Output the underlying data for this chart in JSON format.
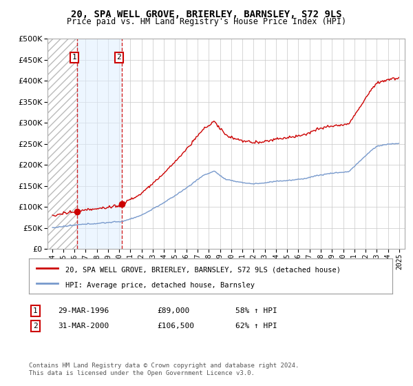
{
  "title": "20, SPA WELL GROVE, BRIERLEY, BARNSLEY, S72 9LS",
  "subtitle": "Price paid vs. HM Land Registry's House Price Index (HPI)",
  "legend_line1": "20, SPA WELL GROVE, BRIERLEY, BARNSLEY, S72 9LS (detached house)",
  "legend_line2": "HPI: Average price, detached house, Barnsley",
  "transaction1_label": "1",
  "transaction1_date": "29-MAR-1996",
  "transaction1_price": "£89,000",
  "transaction1_hpi": "58% ↑ HPI",
  "transaction1_x": 1996.24,
  "transaction1_y": 89000,
  "transaction2_label": "2",
  "transaction2_date": "31-MAR-2000",
  "transaction2_price": "£106,500",
  "transaction2_hpi": "62% ↑ HPI",
  "transaction2_x": 2000.24,
  "transaction2_y": 106500,
  "footer": "Contains HM Land Registry data © Crown copyright and database right 2024.\nThis data is licensed under the Open Government Licence v3.0.",
  "ylim": [
    0,
    500000
  ],
  "yticks": [
    0,
    50000,
    100000,
    150000,
    200000,
    250000,
    300000,
    350000,
    400000,
    450000,
    500000
  ],
  "hpi_color": "#7799cc",
  "price_color": "#cc0000",
  "shade_color": "#ddeeff",
  "background_color": "#ffffff",
  "grid_color": "#cccccc",
  "xlim_start": 1993.6,
  "xlim_end": 2025.5
}
